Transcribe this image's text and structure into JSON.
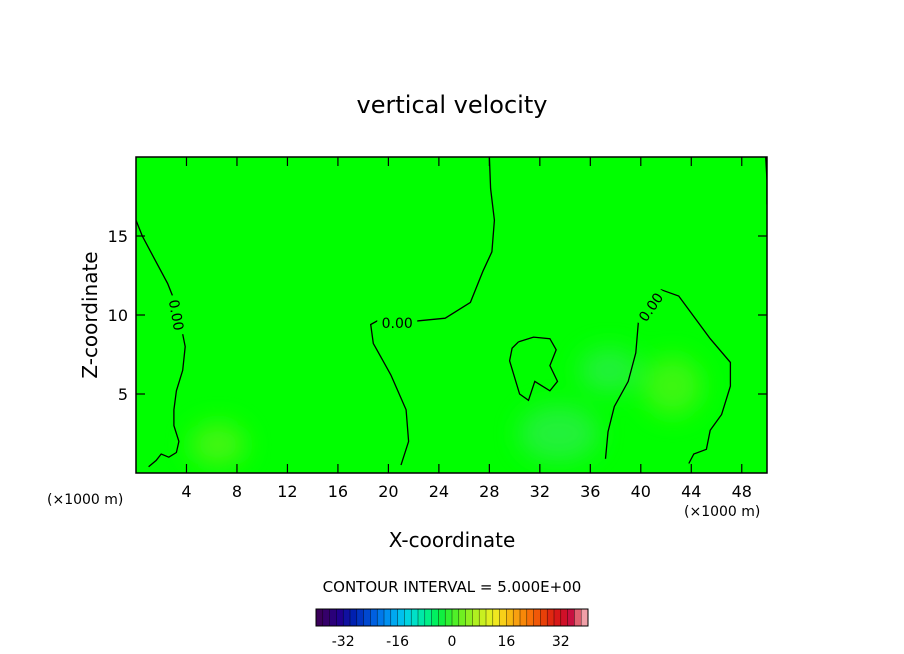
{
  "chart_data": {
    "type": "contour",
    "title": "vertical velocity",
    "xlabel": "X-coordinate",
    "ylabel": "Z-coordinate",
    "x_unit_note": "(×1000 m)",
    "x_unit_note_right": "(×1000 m)",
    "xlim": [
      0,
      50
    ],
    "ylim": [
      0,
      20
    ],
    "x_ticks": [
      4,
      8,
      12,
      16,
      20,
      24,
      28,
      32,
      36,
      40,
      44,
      48
    ],
    "y_ticks": [
      5,
      10,
      15
    ],
    "contour_interval_text": "CONTOUR INTERVAL = 5.000E+00",
    "contour_label": "0.00",
    "contours": [
      {
        "level": 0.0,
        "points": [
          [
            0,
            16
          ],
          [
            0.5,
            15
          ],
          [
            1.5,
            13.5
          ],
          [
            2.5,
            12
          ],
          [
            3,
            11
          ],
          [
            3.6,
            9.2
          ],
          [
            3.9,
            8
          ],
          [
            3.7,
            6.5
          ],
          [
            3.2,
            5.2
          ],
          [
            3,
            4
          ],
          [
            3,
            3
          ],
          [
            3.4,
            2
          ],
          [
            3.2,
            1.3
          ],
          [
            2.6,
            1
          ],
          [
            2,
            1.2
          ],
          [
            1.6,
            0.8
          ],
          [
            1,
            0.4
          ]
        ]
      },
      {
        "level": 0.0,
        "points": [
          [
            28,
            20
          ],
          [
            28.1,
            18
          ],
          [
            28.4,
            16
          ],
          [
            28.2,
            14
          ],
          [
            27.5,
            12.8
          ],
          [
            26.5,
            10.8
          ],
          [
            24.5,
            9.8
          ],
          [
            22,
            9.6
          ],
          [
            19.5,
            9.8
          ],
          [
            18.6,
            9.4
          ],
          [
            18.8,
            8.2
          ],
          [
            20.2,
            6.2
          ],
          [
            21.4,
            4
          ],
          [
            21.6,
            2
          ],
          [
            21,
            0.5
          ]
        ]
      },
      {
        "level": 0.0,
        "points": [
          [
            30.3,
            8.3
          ],
          [
            31.5,
            8.6
          ],
          [
            32.8,
            8.5
          ],
          [
            33.3,
            7.8
          ],
          [
            32.8,
            6.8
          ],
          [
            33.4,
            5.8
          ],
          [
            32.8,
            5.2
          ],
          [
            31.6,
            5.8
          ],
          [
            31.1,
            4.6
          ],
          [
            30.4,
            5
          ],
          [
            29.6,
            7.1
          ],
          [
            29.8,
            7.9
          ],
          [
            30.3,
            8.3
          ]
        ]
      },
      {
        "level": 0.0,
        "points": [
          [
            37.2,
            0.9
          ],
          [
            37.4,
            2.6
          ],
          [
            37.9,
            4.2
          ],
          [
            39,
            5.8
          ],
          [
            39.6,
            7.6
          ],
          [
            39.8,
            9.5
          ],
          [
            40.5,
            10.8
          ],
          [
            41.6,
            11.6
          ],
          [
            43,
            11.2
          ],
          [
            44.3,
            9.8
          ],
          [
            45.5,
            8.5
          ],
          [
            47.1,
            7
          ],
          [
            47.1,
            5.5
          ],
          [
            46.4,
            3.7
          ],
          [
            45.5,
            2.7
          ],
          [
            45.2,
            1.5
          ],
          [
            44.2,
            1.2
          ],
          [
            43.8,
            0.6
          ]
        ]
      },
      {
        "level": 0.0,
        "points": [
          [
            49.9,
            20
          ],
          [
            50,
            18.5
          ],
          [
            50,
            17
          ]
        ]
      }
    ],
    "contour_labels_at": [
      [
        3.2,
        10
      ],
      [
        20.7,
        9.5
      ],
      [
        40.8,
        10.5
      ]
    ],
    "field_colors": {
      "background": "#00ff00",
      "weak_updraft": "#3fe56a",
      "weak_downdraft": "#70f020",
      "axes": "#000000"
    },
    "colorbar": {
      "tick_labels": [
        "-32",
        "-16",
        "0",
        "16",
        "32"
      ],
      "tick_values": [
        -32,
        -16,
        0,
        16,
        32
      ],
      "range": [
        -40,
        40
      ],
      "colors": [
        "#3a005a",
        "#35006a",
        "#2a007a",
        "#20008e",
        "#1010a0",
        "#0020b0",
        "#0033c0",
        "#0048d0",
        "#0060e0",
        "#0078ea",
        "#0090f0",
        "#00a8f0",
        "#00c0ee",
        "#00d4e0",
        "#00e0c8",
        "#00e8a8",
        "#00f088",
        "#00f060",
        "#10f040",
        "#30f030",
        "#50f028",
        "#70f020",
        "#90f020",
        "#b0f020",
        "#c8f020",
        "#e0f020",
        "#f0e820",
        "#f8d018",
        "#f8b810",
        "#f8a010",
        "#f88808",
        "#f87008",
        "#f05808",
        "#e84008",
        "#e02810",
        "#d81818",
        "#d01028",
        "#c81040",
        "#e06070",
        "#f0a0a8"
      ]
    }
  }
}
